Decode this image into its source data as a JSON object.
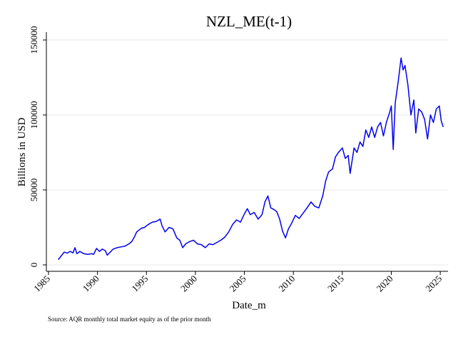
{
  "chart_data": {
    "type": "line",
    "title": "NZL_ME(t-1)",
    "xlabel": "Date_m",
    "ylabel": "Billions in USD",
    "note": "Source: AQR monthly total market equity as of the prior month",
    "xlim": [
      1985,
      2025.5
    ],
    "ylim": [
      0,
      150000
    ],
    "x_ticks": [
      "1985",
      "1990",
      "1995",
      "2000",
      "2005",
      "2010",
      "2015",
      "2020",
      "2025"
    ],
    "y_ticks": [
      "0",
      "50000",
      "100000",
      "150000"
    ],
    "grid": true,
    "legend": "none",
    "line_color": "#0000ee",
    "series": [
      {
        "x": [
          1986.0,
          1986.3,
          1986.6,
          1986.9,
          1987.2,
          1987.5,
          1987.7,
          1987.9,
          1988.2,
          1988.6,
          1989.0,
          1989.4,
          1989.6,
          1989.9,
          1990.2,
          1990.5,
          1990.8,
          1991.0,
          1991.3,
          1991.6,
          1992.0,
          1992.4,
          1992.8,
          1993.2,
          1993.5,
          1993.8,
          1994.0,
          1994.2,
          1994.5,
          1994.8,
          1995.2,
          1995.6,
          1996.0,
          1996.4,
          1996.6,
          1996.9,
          1997.3,
          1997.7,
          1998.1,
          1998.4,
          1998.7,
          1999.0,
          1999.4,
          1999.8,
          2000.2,
          2000.6,
          2001.0,
          2001.4,
          2001.8,
          2002.2,
          2002.6,
          2003.0,
          2003.4,
          2003.8,
          2004.2,
          2004.6,
          2005.0,
          2005.3,
          2005.6,
          2006.0,
          2006.4,
          2006.8,
          2007.1,
          2007.4,
          2007.7,
          2008.0,
          2008.3,
          2008.6,
          2008.9,
          2009.2,
          2009.5,
          2009.8,
          2010.2,
          2010.6,
          2011.0,
          2011.4,
          2011.8,
          2012.2,
          2012.6,
          2013.0,
          2013.3,
          2013.6,
          2014.0,
          2014.3,
          2014.6,
          2015.0,
          2015.3,
          2015.6,
          2015.8,
          2016.2,
          2016.5,
          2016.8,
          2017.1,
          2017.4,
          2017.7,
          2018.0,
          2018.3,
          2018.6,
          2018.9,
          2019.2,
          2019.5,
          2019.8,
          2020.0,
          2020.2,
          2020.4,
          2020.7,
          2021.0,
          2021.2,
          2021.4,
          2021.7,
          2022.0,
          2022.3,
          2022.5,
          2022.8,
          2023.1,
          2023.4,
          2023.7,
          2024.0,
          2024.3,
          2024.6,
          2024.9,
          2025.1,
          2025.3
        ],
        "values": [
          3500,
          6000,
          8500,
          7800,
          9000,
          8000,
          11500,
          7500,
          9000,
          7500,
          7000,
          7500,
          7000,
          11000,
          9000,
          10500,
          9500,
          6500,
          8500,
          10500,
          11500,
          12000,
          12500,
          14000,
          15500,
          19000,
          22000,
          23000,
          24500,
          25000,
          27000,
          28500,
          29000,
          30500,
          26000,
          22000,
          25000,
          24000,
          18000,
          16500,
          11500,
          14000,
          15500,
          16500,
          14000,
          13500,
          11500,
          14000,
          13500,
          15000,
          16500,
          18500,
          22000,
          27000,
          30000,
          28500,
          34000,
          37500,
          33500,
          35000,
          30500,
          33500,
          42000,
          46000,
          38000,
          37000,
          35500,
          30500,
          22500,
          18000,
          24000,
          27500,
          33000,
          31000,
          34500,
          38000,
          42000,
          39000,
          38000,
          46000,
          56000,
          62000,
          64000,
          72000,
          75000,
          78000,
          71000,
          73000,
          61000,
          78000,
          75000,
          82000,
          79000,
          90000,
          85000,
          92000,
          85000,
          92000,
          95000,
          86000,
          95000,
          101000,
          106000,
          77000,
          108000,
          122000,
          138000,
          130000,
          133000,
          120000,
          100000,
          110000,
          88000,
          104000,
          102000,
          97000,
          84000,
          100000,
          95000,
          104000,
          106000,
          96000,
          92000
        ]
      }
    ]
  }
}
